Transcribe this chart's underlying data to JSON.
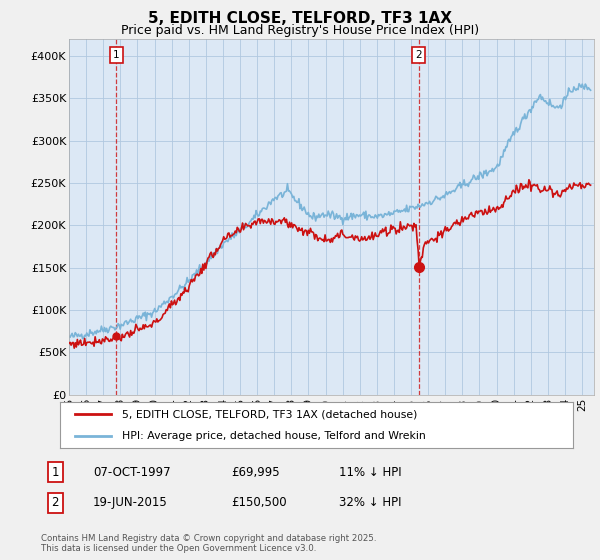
{
  "title": "5, EDITH CLOSE, TELFORD, TF3 1AX",
  "subtitle": "Price paid vs. HM Land Registry's House Price Index (HPI)",
  "ylim": [
    0,
    420000
  ],
  "yticks": [
    0,
    50000,
    100000,
    150000,
    200000,
    250000,
    300000,
    350000,
    400000
  ],
  "ytick_labels": [
    "£0",
    "£50K",
    "£100K",
    "£150K",
    "£200K",
    "£250K",
    "£300K",
    "£350K",
    "£400K"
  ],
  "hpi_color": "#7ab4d8",
  "price_color": "#cc1111",
  "annotation1": [
    "1",
    "07-OCT-1997",
    "£69,995",
    "11% ↓ HPI"
  ],
  "annotation2": [
    "2",
    "19-JUN-2015",
    "£150,500",
    "32% ↓ HPI"
  ],
  "legend1": "5, EDITH CLOSE, TELFORD, TF3 1AX (detached house)",
  "legend2": "HPI: Average price, detached house, Telford and Wrekin",
  "footnote": "Contains HM Land Registry data © Crown copyright and database right 2025.\nThis data is licensed under the Open Government Licence v3.0.",
  "background_color": "#f0f0f0",
  "plot_background": "#dce8f5",
  "grid_color": "#b0c8e0",
  "title_fontsize": 11,
  "subtitle_fontsize": 9,
  "m1_year": 1997.77,
  "m1_price": 69995,
  "m2_year": 2015.46,
  "m2_price": 150500
}
